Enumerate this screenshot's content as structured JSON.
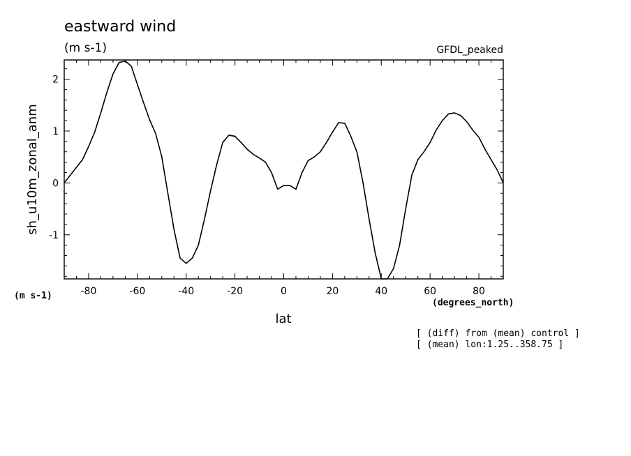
{
  "chart_data": {
    "type": "line",
    "title": "eastward wind",
    "title_units": "(m s-1)",
    "model_label": "GFDL_peaked",
    "xlabel": "lat",
    "xunits": "(degrees_north)",
    "ylabel": "sh_u10m_zonal_anm",
    "yunits": "(m s-1)",
    "xlim": [
      -90,
      90
    ],
    "ylim": [
      -1.85,
      2.37
    ],
    "xticks": [
      -80,
      -60,
      -40,
      -20,
      0,
      20,
      40,
      60,
      80
    ],
    "xtick_labels": [
      "-80",
      "-60",
      "-40",
      "-20",
      "0",
      "20",
      "40",
      "60",
      "80"
    ],
    "yticks": [
      -1,
      0,
      1,
      2
    ],
    "ytick_labels": [
      "-1",
      "0",
      "1",
      "2"
    ],
    "grid": false,
    "annotations": [
      "[ (diff) from (mean) control ]",
      "[ (mean) lon:1.25..358.75 ]"
    ],
    "series": [
      {
        "x": [
          -90,
          -87.5,
          -85,
          -82.5,
          -80,
          -77.5,
          -75,
          -72.5,
          -70,
          -67.5,
          -65,
          -62.5,
          -60,
          -57.5,
          -55,
          -52.5,
          -50,
          -47.5,
          -45,
          -42.5,
          -40,
          -37.5,
          -35,
          -32.5,
          -30,
          -27.5,
          -25,
          -22.5,
          -20,
          -17.5,
          -15,
          -12.5,
          -10,
          -7.5,
          -5,
          -2.5,
          0,
          2.5,
          5,
          7.5,
          10,
          12.5,
          15,
          17.5,
          20,
          22.5,
          25,
          27.5,
          30,
          32.5,
          35,
          37.5,
          40,
          42.5,
          45,
          47.5,
          50,
          52.5,
          55,
          57.5,
          60,
          62.5,
          65,
          67.5,
          70,
          72.5,
          75,
          77.5,
          80,
          82.5,
          85,
          87.5,
          90
        ],
        "y": [
          0.0,
          0.15,
          0.3,
          0.45,
          0.7,
          0.98,
          1.35,
          1.75,
          2.1,
          2.32,
          2.35,
          2.25,
          1.9,
          1.55,
          1.22,
          0.95,
          0.5,
          -0.2,
          -0.9,
          -1.45,
          -1.55,
          -1.45,
          -1.2,
          -0.7,
          -0.15,
          0.35,
          0.78,
          0.92,
          0.9,
          0.78,
          0.65,
          0.55,
          0.48,
          0.4,
          0.2,
          -0.12,
          -0.05,
          -0.05,
          -0.12,
          0.2,
          0.43,
          0.5,
          0.6,
          0.78,
          0.98,
          1.16,
          1.15,
          0.9,
          0.6,
          0.0,
          -0.7,
          -1.35,
          -1.85,
          -1.85,
          -1.65,
          -1.2,
          -0.5,
          0.15,
          0.45,
          0.6,
          0.78,
          1.02,
          1.2,
          1.33,
          1.35,
          1.3,
          1.18,
          1.02,
          0.88,
          0.65,
          0.45,
          0.25,
          0.0
        ]
      }
    ]
  }
}
